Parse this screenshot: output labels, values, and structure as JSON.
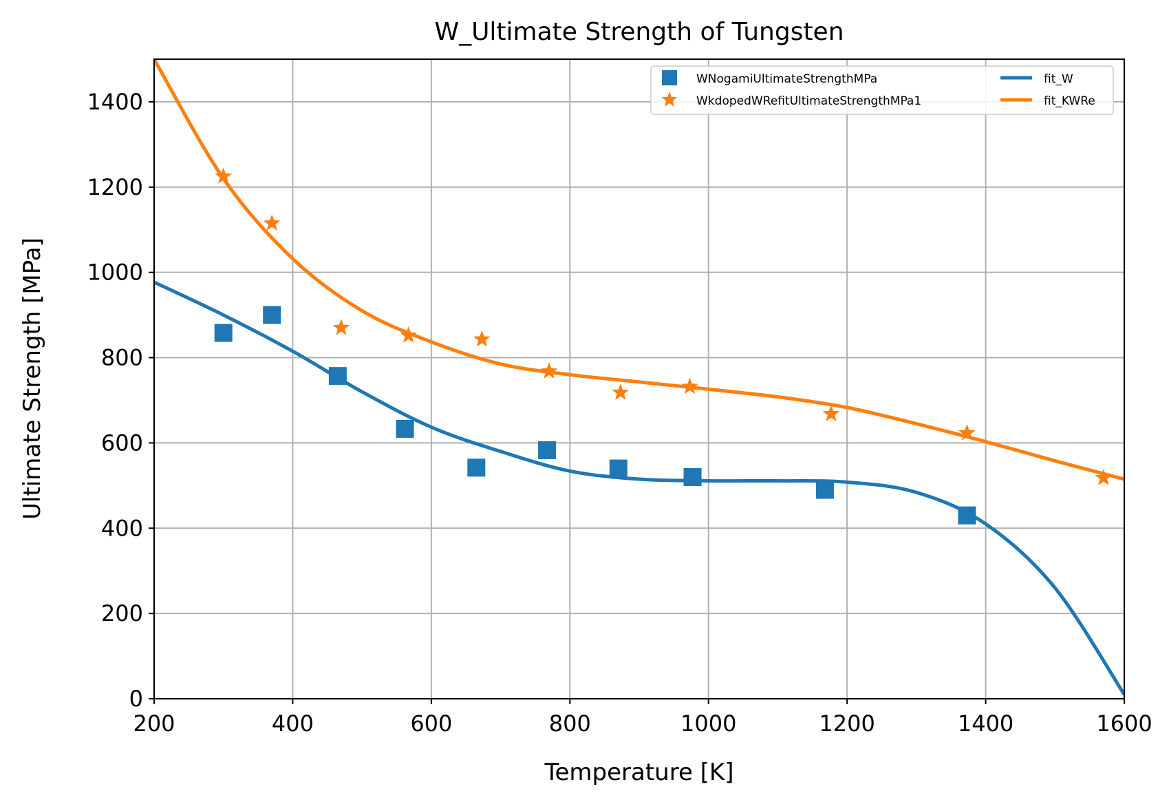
{
  "chart_data": {
    "type": "scatter",
    "title": "W_Ultimate Strength of Tungsten",
    "xlabel": "Temperature [K]",
    "ylabel": "Ultimate Strength [MPa]",
    "xlim": [
      200,
      1600
    ],
    "ylim": [
      0,
      1500
    ],
    "xticks": [
      200,
      400,
      600,
      800,
      1000,
      1200,
      1400,
      1600
    ],
    "yticks": [
      0,
      200,
      400,
      600,
      800,
      1000,
      1200,
      1400
    ],
    "grid": true,
    "legend_position": "top-right",
    "series": [
      {
        "name": "WNogamiUltimateStrengthMPa",
        "kind": "scatter",
        "marker": "square",
        "color": "#1f77b4",
        "x": [
          300,
          370,
          465,
          562,
          665,
          767,
          870,
          977,
          1168,
          1373
        ],
        "y": [
          858,
          900,
          757,
          633,
          542,
          583,
          540,
          520,
          490,
          430
        ]
      },
      {
        "name": "WkdopedWRefitUltimateStrengthMPa1",
        "kind": "scatter",
        "marker": "star",
        "color": "#ff7f0e",
        "x": [
          300,
          370,
          470,
          567,
          673,
          770,
          873,
          973,
          1177,
          1373,
          1570
        ],
        "y": [
          1225,
          1115,
          870,
          852,
          843,
          768,
          718,
          732,
          668,
          623,
          518
        ]
      },
      {
        "name": "fit_W",
        "kind": "line",
        "color": "#1f77b4",
        "x": [
          200,
          300,
          400,
          500,
          600,
          700,
          800,
          900,
          1000,
          1100,
          1200,
          1300,
          1400,
          1500,
          1600
        ],
        "y": [
          977,
          900,
          815,
          720,
          637,
          580,
          534,
          515,
          511,
          511,
          508,
          484,
          410,
          260,
          10
        ]
      },
      {
        "name": "fit_KWRe",
        "kind": "line",
        "color": "#ff7f0e",
        "x": [
          200,
          300,
          400,
          500,
          600,
          700,
          800,
          900,
          1000,
          1100,
          1200,
          1300,
          1400,
          1500,
          1600
        ],
        "y": [
          1500,
          1220,
          1032,
          910,
          837,
          785,
          760,
          743,
          726,
          708,
          683,
          645,
          603,
          558,
          515
        ]
      }
    ]
  }
}
